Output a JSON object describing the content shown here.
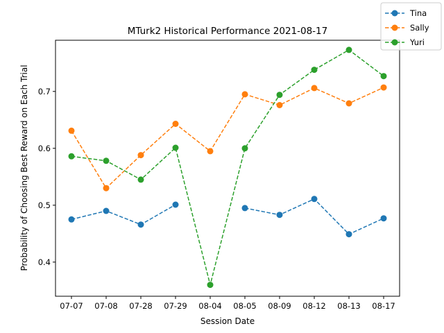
{
  "chart_data": {
    "type": "line",
    "title": "MTurk2 Historical Performance 2021-08-17",
    "xlabel": "Session Date",
    "ylabel": "Probability of Choosing Best Reward on Each Trial",
    "categories": [
      "07-07",
      "07-08",
      "07-28",
      "07-29",
      "08-04",
      "08-05",
      "08-09",
      "08-12",
      "08-13",
      "08-17"
    ],
    "yticks": [
      "0.4",
      "0.5",
      "0.6",
      "0.7"
    ],
    "ylim": [
      0.34,
      0.79
    ],
    "grid": false,
    "legend_position": "top-right",
    "series": [
      {
        "name": "Tina",
        "color": "#1f77b4",
        "values": [
          0.475,
          0.49,
          0.466,
          0.501,
          null,
          0.495,
          0.483,
          0.511,
          0.449,
          0.477
        ]
      },
      {
        "name": "Sally",
        "color": "#ff7f0e",
        "values": [
          0.631,
          0.53,
          0.588,
          0.643,
          0.595,
          0.695,
          0.676,
          0.706,
          0.679,
          0.707
        ]
      },
      {
        "name": "Yuri",
        "color": "#2ca02c",
        "values": [
          0.586,
          0.578,
          0.545,
          0.601,
          0.36,
          0.6,
          0.694,
          0.738,
          0.773,
          0.727
        ]
      }
    ]
  }
}
